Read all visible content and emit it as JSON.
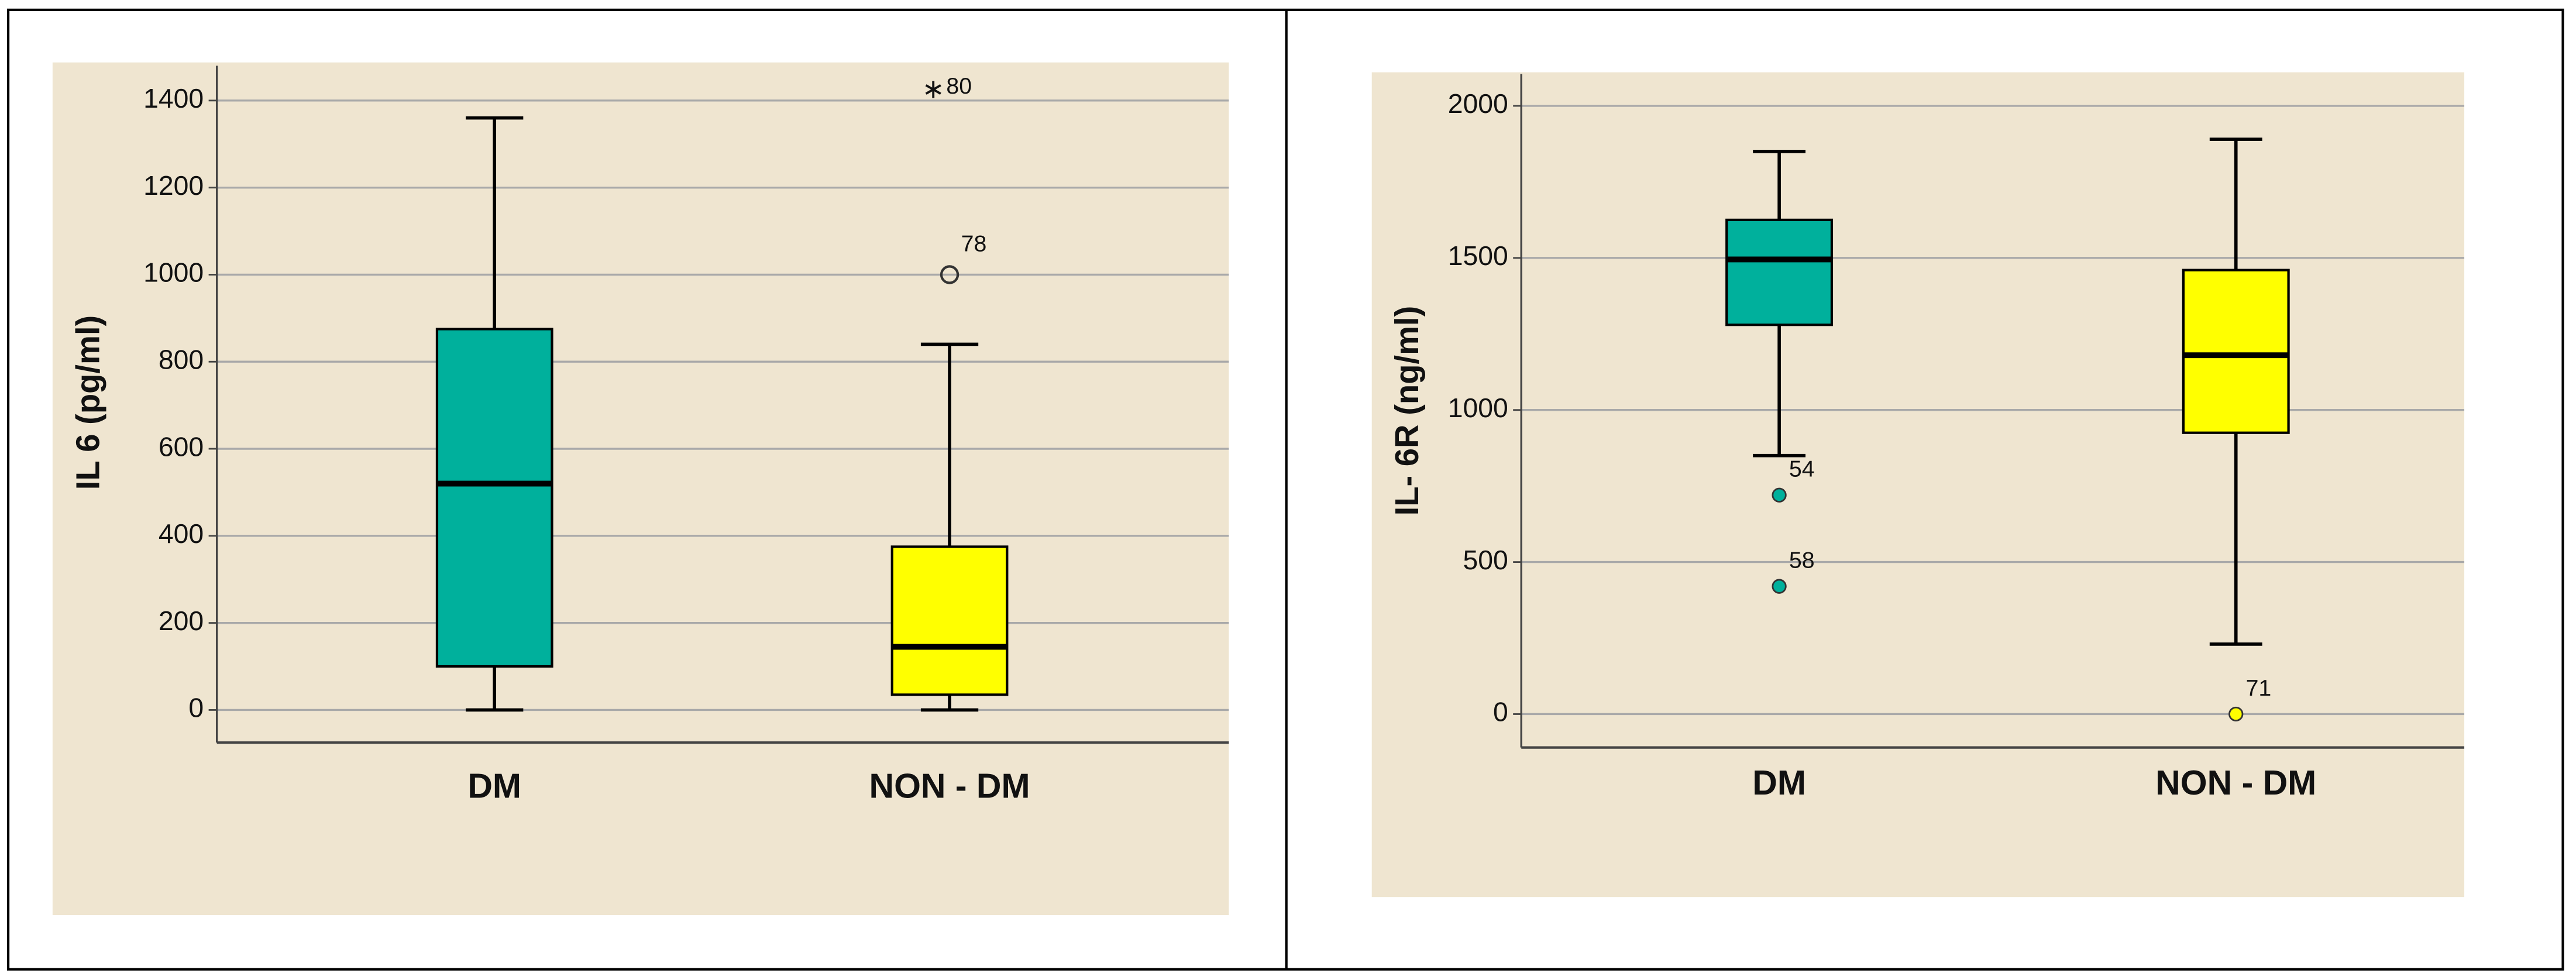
{
  "chart_data": [
    {
      "type": "box",
      "y_label": "IL 6  (pg/ml)",
      "categories": [
        "DM",
        "NON - DM"
      ],
      "boxes": [
        {
          "min": 0,
          "q1": 100,
          "median": 520,
          "q3": 875,
          "max": 1360,
          "color": "#00b09c",
          "outliers": []
        },
        {
          "min": 0,
          "q1": 35,
          "median": 145,
          "q3": 375,
          "max": 840,
          "color": "#ffff00",
          "outliers": [
            {
              "value": 1000,
              "label": "78",
              "marker": "circle"
            },
            {
              "value": 1430,
              "label": "80",
              "marker": "star"
            }
          ]
        }
      ],
      "ylim": [
        -75,
        1480
      ],
      "yticks": [
        0,
        200,
        400,
        600,
        800,
        1000,
        1200,
        1400
      ],
      "grid": true
    },
    {
      "type": "box",
      "y_label": "IL- 6R (ng/ml)",
      "categories": [
        "DM",
        "NON - DM"
      ],
      "boxes": [
        {
          "min": 850,
          "q1": 1280,
          "median": 1495,
          "q3": 1625,
          "max": 1850,
          "color": "#00b09c",
          "outliers": [
            {
              "value": 720,
              "label": "54",
              "marker": "dot"
            },
            {
              "value": 420,
              "label": "58",
              "marker": "dot"
            }
          ]
        },
        {
          "min": 230,
          "q1": 925,
          "median": 1180,
          "q3": 1460,
          "max": 1890,
          "color": "#ffff00",
          "outliers": [
            {
              "value": 0,
              "label": "71",
              "marker": "dot"
            }
          ]
        }
      ],
      "ylim": [
        -110,
        2105
      ],
      "yticks": [
        0,
        500,
        1000,
        1500,
        2000
      ],
      "grid": true
    }
  ]
}
